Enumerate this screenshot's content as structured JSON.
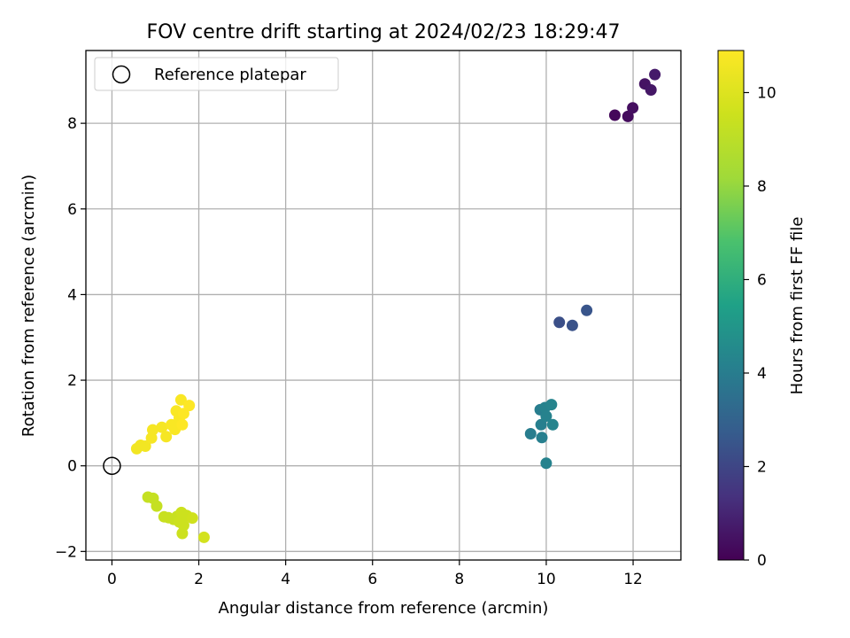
{
  "chart_data": {
    "type": "scatter",
    "title": "FOV centre drift starting at 2024/02/23 18:29:47",
    "xlabel": "Angular distance from reference (arcmin)",
    "ylabel": "Rotation from reference (arcmin)",
    "xlim": [
      -0.6,
      13.1
    ],
    "ylim": [
      -2.2,
      9.7
    ],
    "xticks": [
      0,
      2,
      4,
      6,
      8,
      10,
      12
    ],
    "yticks": [
      -2,
      0,
      2,
      4,
      6,
      8
    ],
    "grid": true,
    "legend": {
      "position": "upper-left",
      "entries": [
        "Reference platepar"
      ]
    },
    "reference_point": {
      "x": 0,
      "y": 0
    },
    "colorbar": {
      "label": "Hours from first FF file",
      "colormap": "viridis",
      "range": [
        0,
        10.9
      ],
      "ticks": [
        0,
        2,
        4,
        6,
        8,
        10
      ]
    },
    "points": [
      {
        "x": 11.58,
        "y": 8.19,
        "c": 0.2
      },
      {
        "x": 11.88,
        "y": 8.16,
        "c": 0.3
      },
      {
        "x": 11.99,
        "y": 8.36,
        "c": 0.4
      },
      {
        "x": 12.27,
        "y": 8.92,
        "c": 0.5
      },
      {
        "x": 12.41,
        "y": 8.78,
        "c": 0.6
      },
      {
        "x": 12.5,
        "y": 9.14,
        "c": 0.7
      },
      {
        "x": 10.3,
        "y": 3.35,
        "c": 2.3
      },
      {
        "x": 10.6,
        "y": 3.28,
        "c": 2.4
      },
      {
        "x": 10.93,
        "y": 3.63,
        "c": 2.5
      },
      {
        "x": 9.64,
        "y": 0.75,
        "c": 4.0
      },
      {
        "x": 9.86,
        "y": 1.31,
        "c": 4.0
      },
      {
        "x": 9.88,
        "y": 0.96,
        "c": 4.1
      },
      {
        "x": 9.9,
        "y": 0.66,
        "c": 4.1
      },
      {
        "x": 9.97,
        "y": 1.36,
        "c": 4.2
      },
      {
        "x": 10.0,
        "y": 1.16,
        "c": 4.2
      },
      {
        "x": 10.0,
        "y": 0.06,
        "c": 4.2
      },
      {
        "x": 10.12,
        "y": 1.43,
        "c": 4.3
      },
      {
        "x": 10.15,
        "y": 0.96,
        "c": 4.3
      },
      {
        "x": 0.83,
        "y": -0.73,
        "c": 9.3
      },
      {
        "x": 0.95,
        "y": -0.76,
        "c": 9.3
      },
      {
        "x": 1.03,
        "y": -0.94,
        "c": 9.3
      },
      {
        "x": 1.2,
        "y": -1.19,
        "c": 9.4
      },
      {
        "x": 1.3,
        "y": -1.21,
        "c": 9.4
      },
      {
        "x": 1.42,
        "y": -1.25,
        "c": 9.4
      },
      {
        "x": 1.5,
        "y": -1.18,
        "c": 9.4
      },
      {
        "x": 1.55,
        "y": -1.31,
        "c": 9.5
      },
      {
        "x": 1.6,
        "y": -1.09,
        "c": 9.5
      },
      {
        "x": 1.62,
        "y": -1.58,
        "c": 9.5
      },
      {
        "x": 1.65,
        "y": -1.39,
        "c": 9.5
      },
      {
        "x": 1.72,
        "y": -1.16,
        "c": 9.5
      },
      {
        "x": 1.85,
        "y": -1.22,
        "c": 9.6
      },
      {
        "x": 2.12,
        "y": -1.67,
        "c": 9.7
      },
      {
        "x": 0.57,
        "y": 0.4,
        "c": 10.6
      },
      {
        "x": 0.66,
        "y": 0.48,
        "c": 10.6
      },
      {
        "x": 0.77,
        "y": 0.46,
        "c": 10.6
      },
      {
        "x": 0.91,
        "y": 0.65,
        "c": 10.7
      },
      {
        "x": 0.94,
        "y": 0.84,
        "c": 10.7
      },
      {
        "x": 1.15,
        "y": 0.9,
        "c": 10.7
      },
      {
        "x": 1.25,
        "y": 0.68,
        "c": 10.7
      },
      {
        "x": 1.37,
        "y": 0.96,
        "c": 10.8
      },
      {
        "x": 1.45,
        "y": 0.85,
        "c": 10.8
      },
      {
        "x": 1.48,
        "y": 1.28,
        "c": 10.8
      },
      {
        "x": 1.55,
        "y": 1.12,
        "c": 10.8
      },
      {
        "x": 1.59,
        "y": 1.54,
        "c": 10.8
      },
      {
        "x": 1.62,
        "y": 0.96,
        "c": 10.9
      },
      {
        "x": 1.65,
        "y": 1.22,
        "c": 10.9
      },
      {
        "x": 1.78,
        "y": 1.41,
        "c": 10.9
      }
    ]
  }
}
